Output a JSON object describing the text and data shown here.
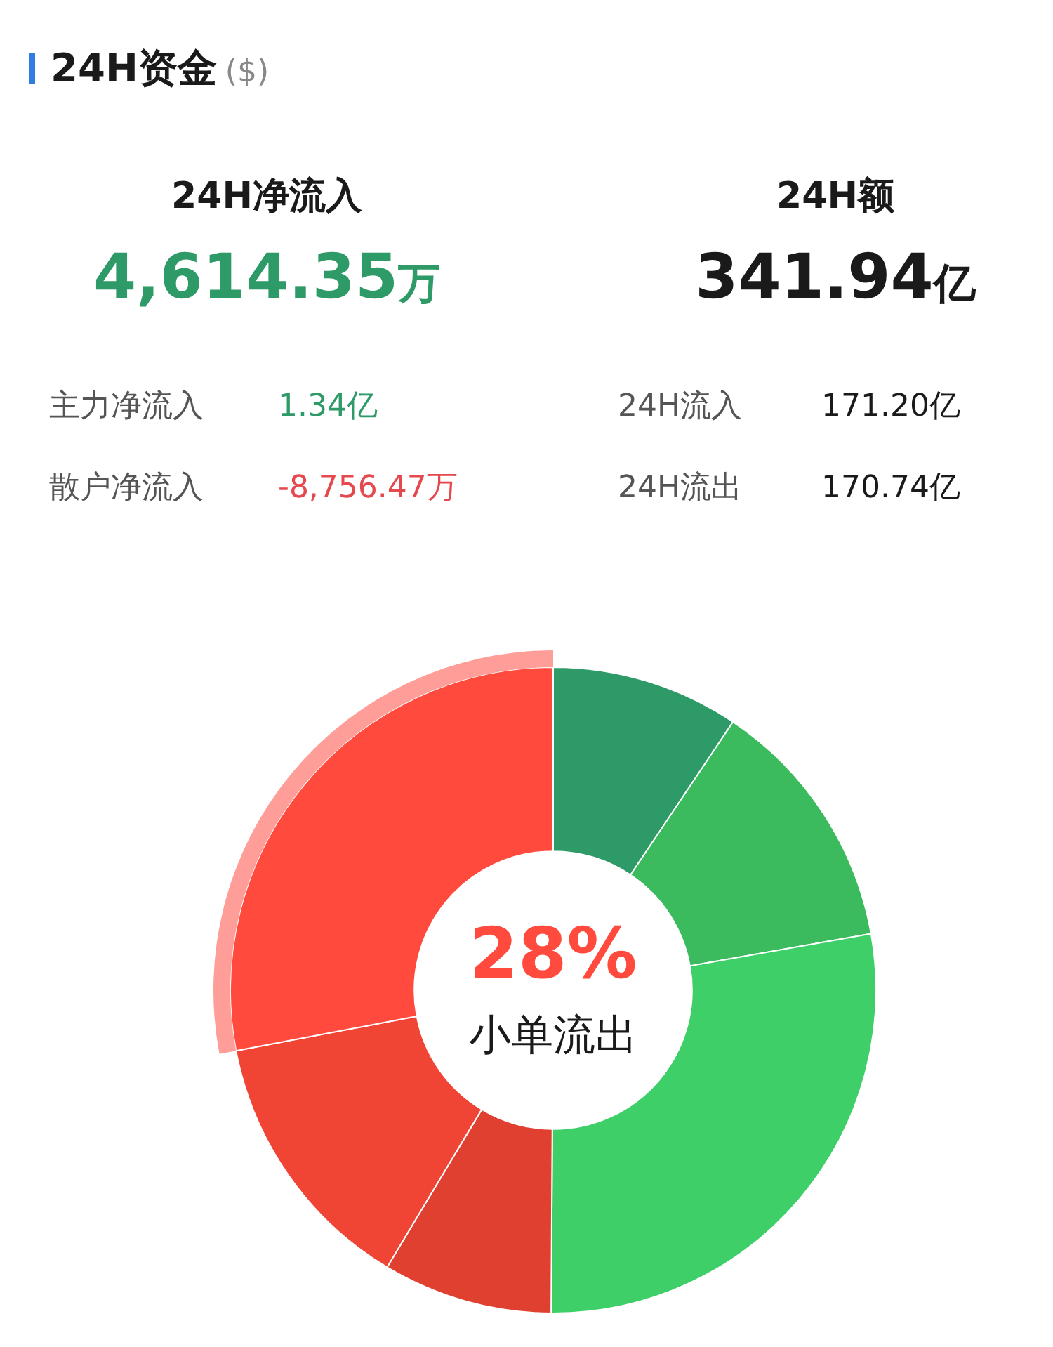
{
  "chart_data": [
    {
      "type": "other",
      "title": "24H资金",
      "subtitle": "($)",
      "annotations": [
        "24H净流入",
        "4,614.35万",
        "24H额",
        "341.94亿",
        "主力净流入",
        "1.34亿",
        "散户净流入",
        "-8,756.47万",
        "24H流入",
        "171.20亿",
        "24H流出",
        "170.74亿"
      ]
    },
    {
      "type": "donut",
      "categories": [
        null,
        null,
        null,
        null,
        null,
        "小单流出"
      ],
      "values": [
        9.4,
        12.8,
        27.9,
        8.5,
        13.4,
        28
      ],
      "colors": [
        "#2e9a68",
        "#3cba5e",
        "#3ecf69",
        "#e04030",
        "#f04535",
        "#ff4a3d"
      ],
      "value_labels": [
        null,
        null,
        null,
        null,
        null,
        "28%"
      ]
    }
  ]
}
